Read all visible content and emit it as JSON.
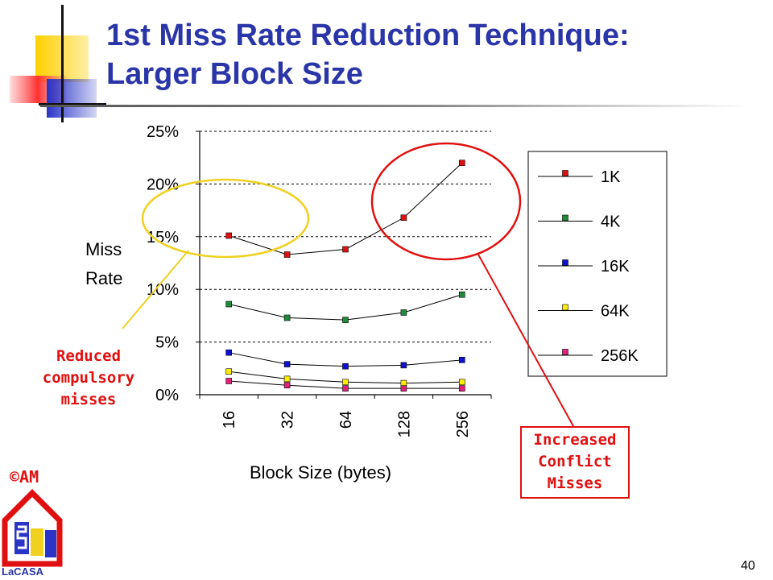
{
  "slide": {
    "title_line1": "1st Miss Rate Reduction Technique:",
    "title_line2": "Larger Block Size",
    "page_number": "40",
    "copyright": "©AM",
    "logo_text": "LaCASA",
    "annotations": {
      "reduced": [
        "Reduced",
        "compulsory",
        "misses"
      ],
      "increased": [
        "Increased",
        "Conflict",
        "Misses"
      ]
    }
  },
  "chart_data": {
    "type": "line",
    "categories": [
      "16",
      "32",
      "64",
      "128",
      "256"
    ],
    "series": [
      {
        "name": "1K",
        "values": [
          15.1,
          13.3,
          13.8,
          16.8,
          22.0
        ],
        "color": "#e01010"
      },
      {
        "name": "4K",
        "values": [
          8.6,
          7.3,
          7.1,
          7.8,
          9.5
        ],
        "color": "#1e8a3a"
      },
      {
        "name": "16K",
        "values": [
          4.0,
          2.9,
          2.7,
          2.8,
          3.3
        ],
        "color": "#1010d0"
      },
      {
        "name": "64K",
        "values": [
          2.2,
          1.5,
          1.2,
          1.1,
          1.2
        ],
        "color": "#ffee00"
      },
      {
        "name": "256K",
        "values": [
          1.3,
          0.9,
          0.6,
          0.6,
          0.6
        ],
        "color": "#e0207a"
      }
    ],
    "xlabel": "Block Size (bytes)",
    "ylabel_lines": [
      "Miss",
      "Rate"
    ],
    "ylim": [
      0,
      25
    ],
    "yticks": [
      0,
      5,
      10,
      15,
      20,
      25
    ],
    "ytick_labels": [
      "0%",
      "5%",
      "10%",
      "15%",
      "20%",
      "25%"
    ],
    "grid": true,
    "legend_position": "right",
    "highlight_colors": {
      "compulsory_ellipse": "#f0d020",
      "conflict_ellipse": "#e01010"
    }
  }
}
